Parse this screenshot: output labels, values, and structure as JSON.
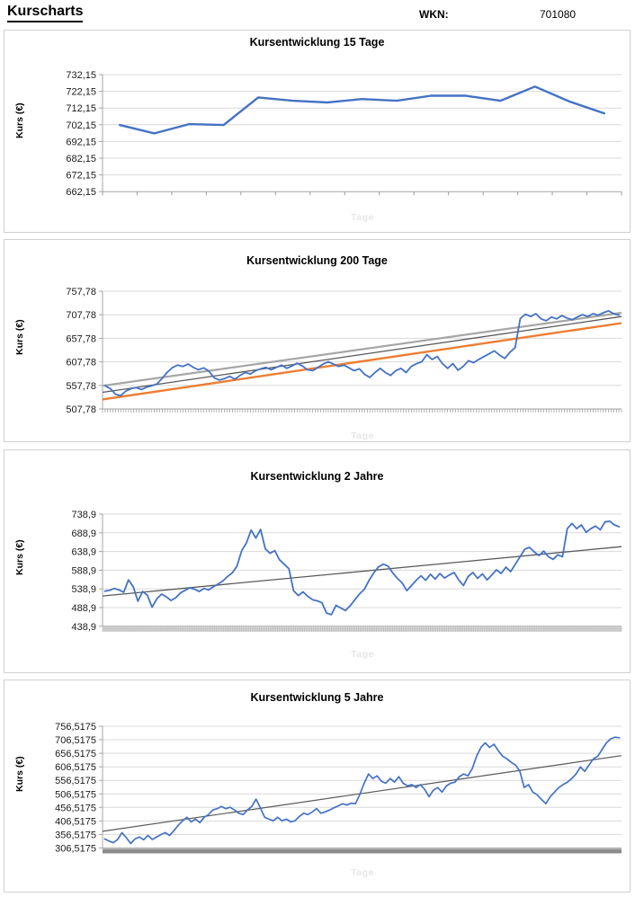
{
  "page": {
    "title": "Kurscharts",
    "wkn_label": "WKN:",
    "wkn_value": "701080"
  },
  "style": {
    "axis_color": "#A6A6A6",
    "grid_color": "#D9D9D9",
    "tick_text_color": "#1A1A1A",
    "tick_mark_color": "#999999",
    "comb_color": "#8A8A8A",
    "stripe_band_color": "#B5B5B5",
    "solid_band_color": "#8C8C8C",
    "series_blue": "#4472C4",
    "trend_orange": "#ED7D31",
    "trend_gray_light": "#A6A6A6",
    "trend_gray_dark": "#595959"
  },
  "chart_data": [
    {
      "type": "line",
      "title": "Kursentwicklung 15 Tage",
      "xlabel": "Tage",
      "ylabel": "Kurs (€)",
      "ylim": [
        662.15,
        732.15
      ],
      "yticks": [
        "732,15",
        "722,15",
        "712,15",
        "702,15",
        "692,15",
        "682,15",
        "672,15",
        "662,15"
      ],
      "x_count": 15,
      "grid": true,
      "legend": false,
      "baseline_style": "ticks",
      "series": [
        {
          "name": "Kurs",
          "color": "#4472C4",
          "width": 2.4,
          "values": [
            702,
            697,
            702.5,
            702,
            718.5,
            716.5,
            715.5,
            717.5,
            716.5,
            719.5,
            719.5,
            716.5,
            725,
            716,
            709
          ]
        }
      ],
      "trendlines": []
    },
    {
      "type": "line",
      "title": "Kursentwicklung 200 Tage",
      "xlabel": "Tage",
      "ylabel": "Kurs (€)",
      "ylim": [
        507.78,
        757.78
      ],
      "yticks": [
        "757,78",
        "707,78",
        "657,78",
        "607,78",
        "557,78",
        "507,78"
      ],
      "x_count": 200,
      "grid": true,
      "legend": false,
      "baseline_style": "comb",
      "series": [
        {
          "name": "Kurs",
          "color": "#4472C4",
          "width": 1.8,
          "values": [
            557,
            551,
            539,
            536,
            546,
            551,
            553,
            549,
            554,
            557,
            561,
            573,
            586,
            596,
            601,
            598,
            603,
            596,
            591,
            595,
            588,
            574,
            569,
            572,
            577,
            571,
            579,
            585,
            582,
            589,
            593,
            596,
            591,
            596,
            601,
            594,
            599,
            605,
            599,
            591,
            589,
            596,
            603,
            608,
            603,
            598,
            601,
            595,
            589,
            593,
            581,
            575,
            585,
            594,
            585,
            579,
            589,
            594,
            585,
            598,
            604,
            608,
            623,
            613,
            619,
            604,
            594,
            604,
            590,
            598,
            610,
            606,
            613,
            619,
            625,
            631,
            622,
            615,
            628,
            638,
            700,
            709,
            704,
            710,
            699,
            695,
            703,
            699,
            706,
            701,
            697,
            703,
            708,
            704,
            710,
            707,
            712,
            716,
            710,
            707
          ]
        }
      ],
      "trendlines": [
        {
          "name": "trend-gray-light",
          "color": "#A6A6A6",
          "width": 2.2,
          "start": 557,
          "end": 712
        },
        {
          "name": "trend-gray-dark",
          "color": "#595959",
          "width": 1.3,
          "start": 543,
          "end": 704
        },
        {
          "name": "trend-orange",
          "color": "#ED7D31",
          "width": 2.4,
          "start": 528,
          "end": 690
        }
      ]
    },
    {
      "type": "line",
      "title": "Kursentwicklung 2 Jahre",
      "xlabel": "Tage",
      "ylabel": "Kurs (€)",
      "ylim": [
        438.9,
        738.9
      ],
      "yticks": [
        "738,9",
        "688,9",
        "638,9",
        "588,9",
        "538,9",
        "488,9",
        "438,9"
      ],
      "x_count": 500,
      "grid": true,
      "legend": false,
      "baseline_style": "striped-band",
      "series": [
        {
          "name": "Kurs",
          "color": "#4472C4",
          "width": 1.8,
          "values": [
            533,
            535,
            540,
            536,
            530,
            563,
            545,
            506,
            532,
            522,
            490,
            512,
            525,
            518,
            508,
            515,
            528,
            535,
            542,
            538,
            532,
            540,
            536,
            545,
            552,
            560,
            572,
            582,
            600,
            641,
            662,
            696,
            675,
            698,
            646,
            634,
            641,
            617,
            605,
            593,
            534,
            521,
            531,
            519,
            510,
            507,
            502,
            474,
            470,
            495,
            488,
            481,
            494,
            510,
            526,
            538,
            562,
            582,
            598,
            605,
            600,
            582,
            567,
            555,
            534,
            548,
            562,
            574,
            562,
            578,
            565,
            580,
            568,
            576,
            583,
            563,
            548,
            572,
            583,
            567,
            579,
            563,
            576,
            590,
            580,
            597,
            585,
            605,
            625,
            645,
            650,
            638,
            628,
            640,
            625,
            618,
            630,
            625,
            700,
            714,
            700,
            710,
            690,
            700,
            707,
            697,
            718,
            720,
            710,
            705
          ]
        }
      ],
      "trendlines": [
        {
          "name": "trend-gray-dark",
          "color": "#595959",
          "width": 1.3,
          "start": 520,
          "end": 652
        }
      ]
    },
    {
      "type": "line",
      "title": "Kursentwicklung 5 Jahre",
      "xlabel": "Tage",
      "ylabel": "Kurs (€)",
      "ylim": [
        306.5175,
        756.5175
      ],
      "yticks": [
        "756,5175",
        "706,5175",
        "656,5175",
        "606,5175",
        "556,5175",
        "506,5175",
        "456,5175",
        "406,5175",
        "356,5175",
        "306,5175"
      ],
      "x_count": 1250,
      "grid": true,
      "legend": false,
      "baseline_style": "solid-band",
      "series": [
        {
          "name": "Kurs",
          "color": "#4472C4",
          "width": 1.7,
          "values": [
            340,
            332,
            326,
            338,
            363,
            345,
            323,
            340,
            347,
            337,
            353,
            338,
            347,
            356,
            363,
            353,
            370,
            390,
            407,
            420,
            403,
            413,
            400,
            420,
            430,
            447,
            452,
            460,
            452,
            457,
            447,
            435,
            430,
            447,
            460,
            487,
            455,
            420,
            413,
            407,
            420,
            407,
            413,
            403,
            407,
            423,
            435,
            430,
            440,
            452,
            435,
            440,
            447,
            455,
            462,
            470,
            465,
            472,
            470,
            505,
            546,
            580,
            563,
            573,
            553,
            546,
            563,
            550,
            570,
            546,
            536,
            541,
            530,
            541,
            523,
            496,
            520,
            530,
            513,
            536,
            546,
            550,
            570,
            580,
            573,
            600,
            646,
            678,
            695,
            678,
            690,
            666,
            646,
            636,
            623,
            613,
            590,
            530,
            541,
            513,
            503,
            486,
            470,
            496,
            513,
            530,
            541,
            550,
            563,
            580,
            606,
            590,
            613,
            636,
            646,
            670,
            695,
            710,
            716,
            714
          ]
        }
      ],
      "trendlines": [
        {
          "name": "trend-gray-dark",
          "color": "#595959",
          "width": 1.2,
          "start": 368,
          "end": 648
        }
      ]
    }
  ]
}
